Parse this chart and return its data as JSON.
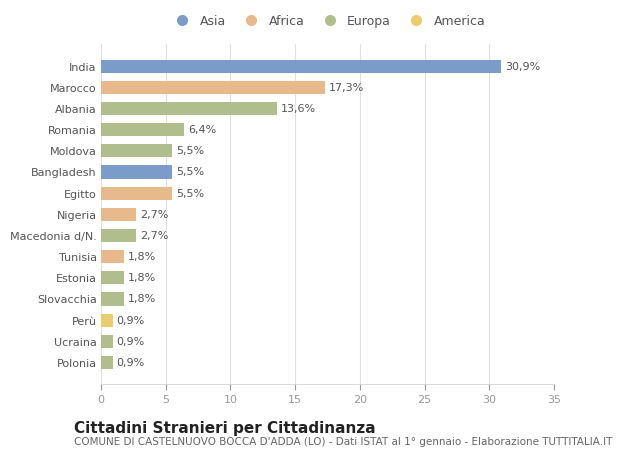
{
  "countries": [
    "India",
    "Marocco",
    "Albania",
    "Romania",
    "Moldova",
    "Bangladesh",
    "Egitto",
    "Nigeria",
    "Macedonia d/N.",
    "Tunisia",
    "Estonia",
    "Slovacchia",
    "Perù",
    "Ucraina",
    "Polonia"
  ],
  "values": [
    30.9,
    17.3,
    13.6,
    6.4,
    5.5,
    5.5,
    5.5,
    2.7,
    2.7,
    1.8,
    1.8,
    1.8,
    0.9,
    0.9,
    0.9
  ],
  "labels": [
    "30,9%",
    "17,3%",
    "13,6%",
    "6,4%",
    "5,5%",
    "5,5%",
    "5,5%",
    "2,7%",
    "2,7%",
    "1,8%",
    "1,8%",
    "1,8%",
    "0,9%",
    "0,9%",
    "0,9%"
  ],
  "continents": [
    "Asia",
    "Africa",
    "Europa",
    "Europa",
    "Europa",
    "Asia",
    "Africa",
    "Africa",
    "Europa",
    "Africa",
    "Europa",
    "Europa",
    "America",
    "Europa",
    "Europa"
  ],
  "continent_colors": {
    "Asia": "#7b9cc9",
    "Africa": "#e8b98a",
    "Europa": "#b0be8e",
    "America": "#e8cc6e"
  },
  "legend_order": [
    "Asia",
    "Africa",
    "Europa",
    "America"
  ],
  "title": "Cittadini Stranieri per Cittadinanza",
  "subtitle": "COMUNE DI CASTELNUOVO BOCCA D'ADDA (LO) - Dati ISTAT al 1° gennaio - Elaborazione TUTTITALIA.IT",
  "xlim": [
    0,
    35
  ],
  "xticks": [
    0,
    5,
    10,
    15,
    20,
    25,
    30,
    35
  ],
  "bg_color": "#ffffff",
  "plot_bg_color": "#ffffff",
  "bar_height": 0.62,
  "title_fontsize": 11,
  "subtitle_fontsize": 7.5,
  "tick_fontsize": 8,
  "label_fontsize": 8,
  "legend_fontsize": 9
}
